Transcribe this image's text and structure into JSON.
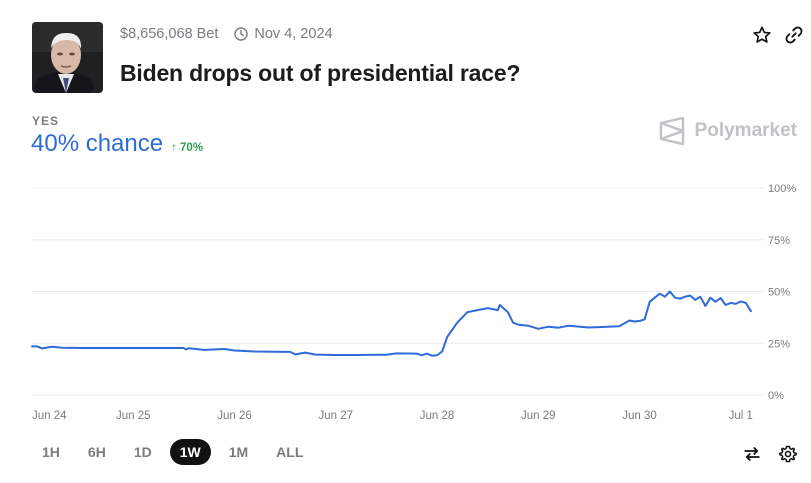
{
  "market": {
    "bet_volume": "$8,656,068 Bet",
    "end_date": "Nov 4, 2024",
    "question": "Biden drops out of presidential race?",
    "outcome_label": "YES",
    "chance_text": "40% chance",
    "change_text": "↑ 70%",
    "brand": "Polymarket"
  },
  "colors": {
    "line": "#2f6bd8",
    "positive": "#2e9d57",
    "brand": "#c2c2c6"
  },
  "icons": {
    "star": "star-icon",
    "link": "link-icon",
    "clock": "clock-icon",
    "swap": "swap-icon",
    "settings": "gear-icon"
  },
  "time_ranges": [
    {
      "label": "1H",
      "active": false
    },
    {
      "label": "6H",
      "active": false
    },
    {
      "label": "1D",
      "active": false
    },
    {
      "label": "1W",
      "active": true
    },
    {
      "label": "1M",
      "active": false
    },
    {
      "label": "ALL",
      "active": false
    }
  ],
  "chart_data": {
    "type": "line",
    "title": "",
    "xlabel": "",
    "ylabel": "",
    "ylim": [
      0,
      100
    ],
    "y_ticks": [
      "100%",
      "75%",
      "50%",
      "25%",
      "0%"
    ],
    "y_tick_values": [
      100,
      75,
      50,
      25,
      0
    ],
    "x_ticks": [
      "Jun 24",
      "Jun 25",
      "Jun 26",
      "Jun 27",
      "Jun 28",
      "Jun 29",
      "Jun 30",
      "Jul 1"
    ],
    "x_range": [
      0,
      7.15
    ],
    "grid": true,
    "series": [
      {
        "x": [
          0,
          0.05,
          0.1,
          0.2,
          0.3,
          0.5,
          0.8,
          1.0,
          1.3,
          1.5,
          1.52,
          1.55,
          1.7,
          1.9,
          2.0,
          2.2,
          2.5,
          2.55,
          2.6,
          2.7,
          2.8,
          3.0,
          3.2,
          3.4,
          3.5,
          3.6,
          3.8,
          3.85,
          3.9,
          3.95,
          4.0,
          4.05,
          4.1,
          4.2,
          4.3,
          4.4,
          4.5,
          4.6,
          4.62,
          4.7,
          4.75,
          4.8,
          4.9,
          5.0,
          5.1,
          5.2,
          5.3,
          5.5,
          5.6,
          5.8,
          5.9,
          5.95,
          6.0,
          6.05,
          6.1,
          6.15,
          6.2,
          6.25,
          6.3,
          6.35,
          6.4,
          6.45,
          6.5,
          6.55,
          6.6,
          6.65,
          6.7,
          6.75,
          6.8,
          6.85,
          6.9,
          6.95,
          7.0,
          7.05,
          7.1
        ],
        "y": [
          23.5,
          23.5,
          22.5,
          23.3,
          22.8,
          22.7,
          22.7,
          22.7,
          22.7,
          22.7,
          22,
          22.6,
          21.8,
          22.2,
          21.5,
          21,
          20.8,
          20.8,
          19.6,
          20.5,
          19.5,
          19.3,
          19.3,
          19.4,
          19.4,
          20.1,
          20,
          19.2,
          20,
          19,
          19.2,
          21,
          28,
          35,
          40,
          41,
          42,
          41,
          43.5,
          40,
          35,
          34,
          33.5,
          32,
          33,
          32.5,
          33.5,
          32.6,
          32.8,
          33.2,
          36,
          35.5,
          35.8,
          36.5,
          45,
          47,
          49,
          47.5,
          50,
          47,
          46.5,
          47.5,
          48,
          46,
          47.5,
          43,
          47,
          45,
          46.8,
          43.5,
          44.5,
          44,
          45.2,
          44.5,
          40.5
        ]
      }
    ]
  }
}
